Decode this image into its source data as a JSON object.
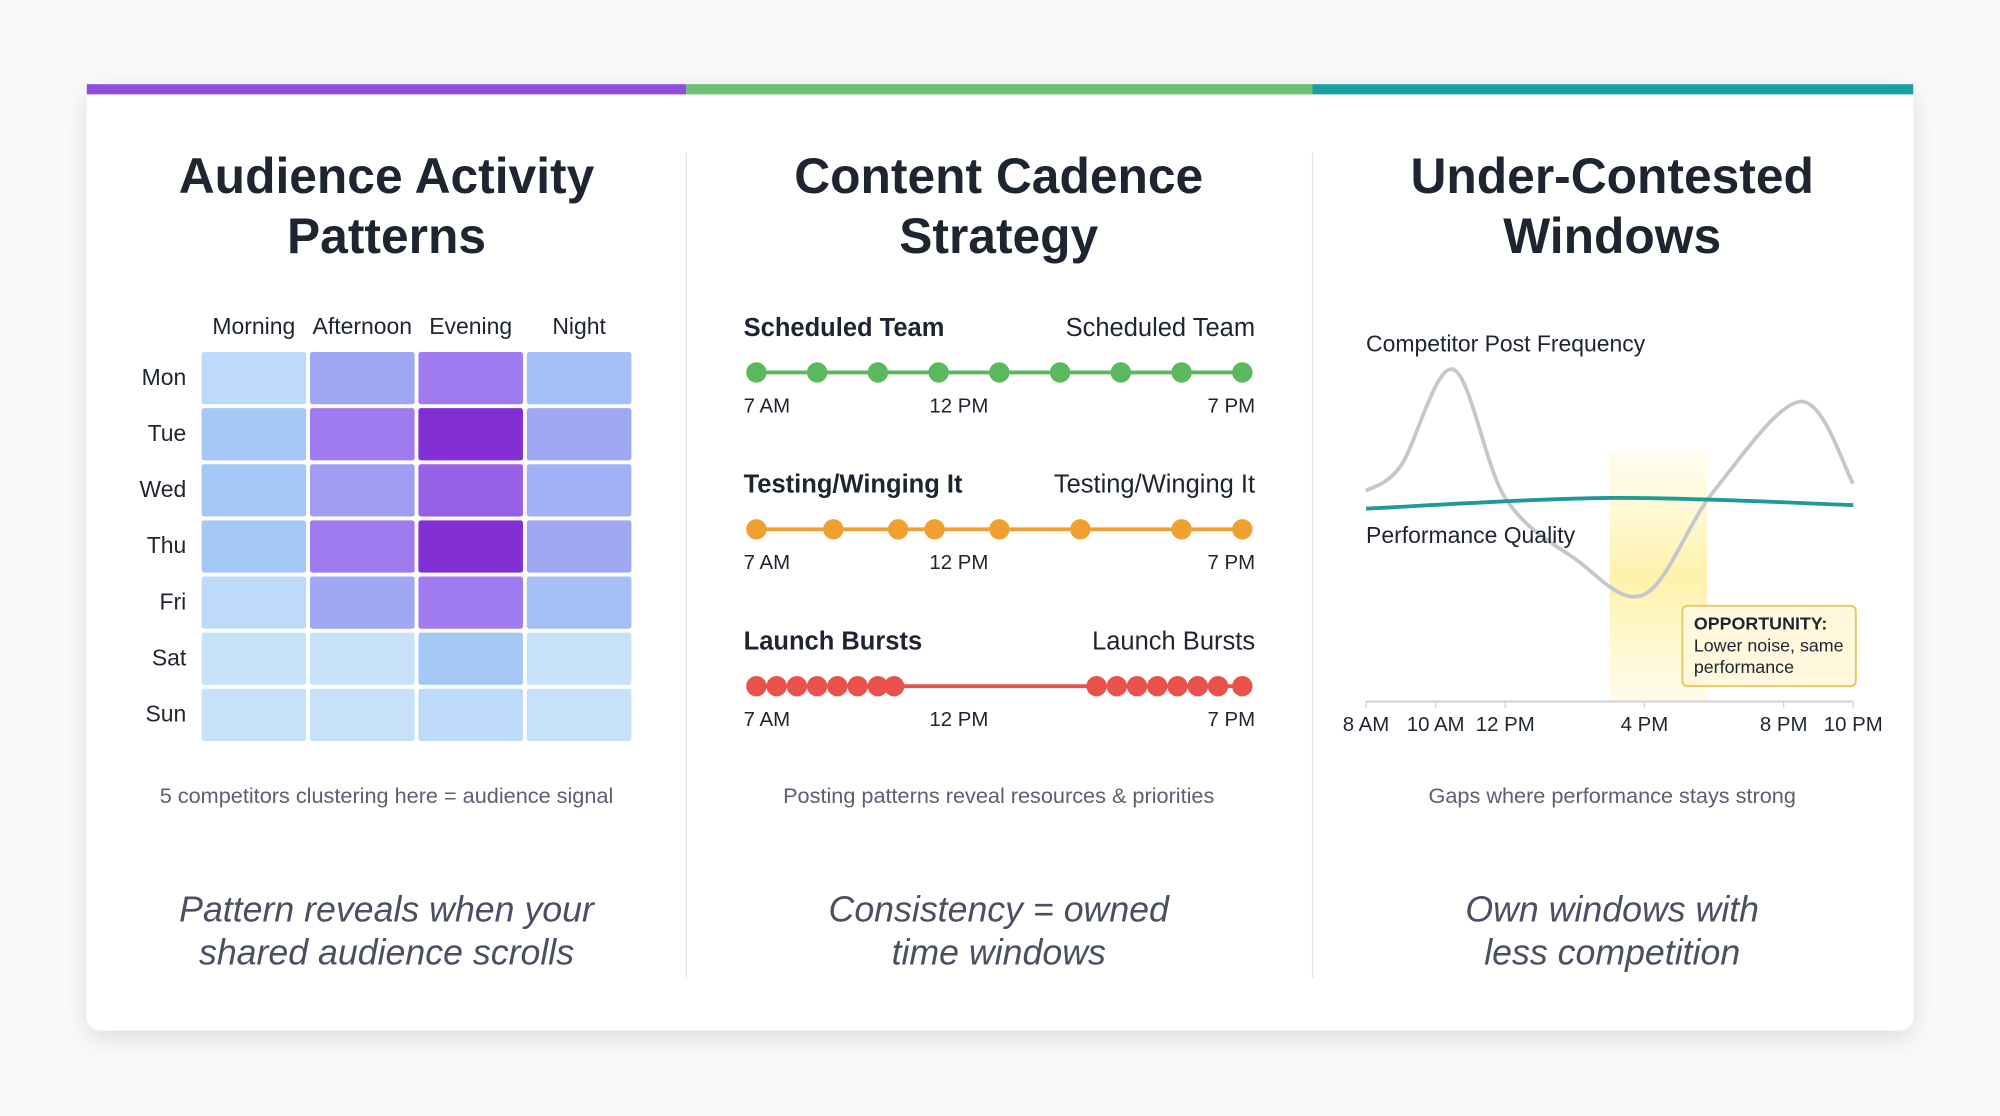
{
  "chart_data": [
    {
      "type": "heatmap",
      "title": [
        "Audience Activity",
        "Patterns"
      ],
      "columns": [
        "Morning",
        "Afternoon",
        "Evening",
        "Night"
      ],
      "rows": [
        "Mon",
        "Tue",
        "Wed",
        "Thu",
        "Fri",
        "Sat",
        "Sun"
      ],
      "values": [
        [
          15,
          50,
          70,
          35
        ],
        [
          30,
          70,
          95,
          50
        ],
        [
          30,
          55,
          80,
          45
        ],
        [
          30,
          70,
          95,
          50
        ],
        [
          15,
          50,
          70,
          35
        ],
        [
          10,
          10,
          30,
          10
        ],
        [
          10,
          10,
          15,
          10
        ]
      ],
      "colorscale": [
        "#dcecfb",
        "#a8d0f7",
        "#a0a8f4",
        "#a070ee",
        "#7a1fcc"
      ],
      "caption": "5 competitors clustering here = audience signal",
      "takeaway": [
        "Pattern reveals when your",
        "shared audience scrolls"
      ]
    },
    {
      "type": "timeline",
      "title": [
        "Content Cadence",
        "Strategy"
      ],
      "xlim": [
        7,
        19
      ],
      "xticks": [
        {
          "value": 7,
          "label": "7 AM"
        },
        {
          "value": 12,
          "label": "12 PM"
        },
        {
          "value": 19,
          "label": "7 PM"
        }
      ],
      "series": [
        {
          "name": "Scheduled Team",
          "name_right": "Scheduled Team",
          "color": "#5cb85c",
          "values": [
            7,
            8.5,
            10,
            11.5,
            13,
            14.5,
            16,
            17.5,
            19
          ]
        },
        {
          "name": "Testing/Winging It",
          "name_right": "Testing/Winging It",
          "color": "#f0a030",
          "values": [
            7,
            8.9,
            10.5,
            11.4,
            13,
            15,
            17.5,
            19
          ]
        },
        {
          "name": "Launch Bursts",
          "name_right": "Launch Bursts",
          "color": "#e8524a",
          "values": [
            7,
            7.5,
            8,
            8.5,
            9,
            9.5,
            10,
            10.4,
            15.4,
            15.9,
            16.4,
            16.9,
            17.4,
            17.9,
            18.4,
            19
          ]
        }
      ],
      "caption": "Posting patterns reveal resources & priorities",
      "takeaway": [
        "Consistency = owned",
        "time windows"
      ]
    },
    {
      "type": "line",
      "title": [
        "Under-Contested",
        "Windows"
      ],
      "xlim": [
        8,
        22
      ],
      "ylim": [
        0,
        10
      ],
      "xticks": [
        {
          "value": 8,
          "label": "8 AM"
        },
        {
          "value": 10,
          "label": "10 AM"
        },
        {
          "value": 12,
          "label": "12 PM"
        },
        {
          "value": 16,
          "label": "4 PM"
        },
        {
          "value": 20,
          "label": "8 PM"
        },
        {
          "value": 22,
          "label": "10 PM"
        }
      ],
      "series": [
        {
          "name": "Competitor Post Frequency",
          "color": "#c4c8ce",
          "x": [
            8,
            9,
            10.5,
            12,
            14,
            16,
            18,
            20.5,
            22
          ],
          "values": [
            5.9,
            6.6,
            9.3,
            5.7,
            4.0,
            3.0,
            5.9,
            8.4,
            6.1
          ]
        },
        {
          "name": "Performance Quality",
          "color": "#1f9a94",
          "x": [
            8,
            15,
            22
          ],
          "values": [
            5.4,
            5.7,
            5.5
          ]
        }
      ],
      "highlight": [
        15,
        17.8
      ],
      "annotation": [
        "OPPORTUNITY:",
        "Lower noise, same",
        "performance"
      ],
      "caption": "Gaps where performance stays strong",
      "takeaway": [
        "Own windows with",
        "less competition"
      ]
    }
  ]
}
